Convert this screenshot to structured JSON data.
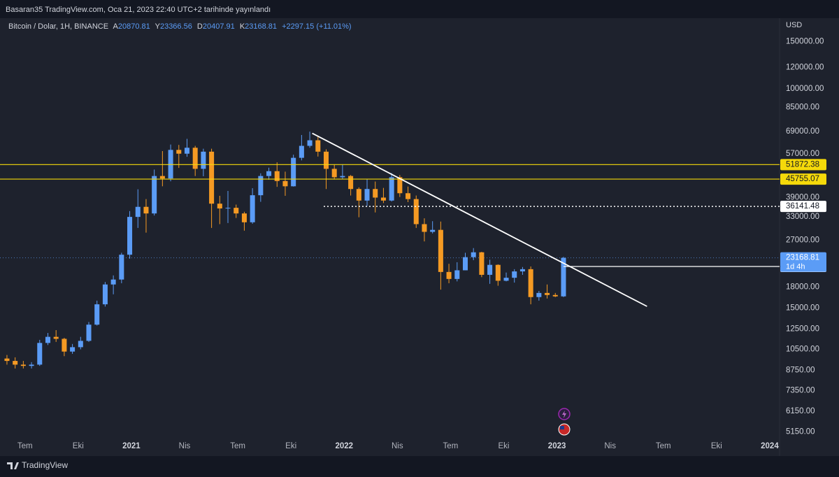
{
  "header": {
    "publisher": "Basaran35 TradingView.com, Oca 21, 2023 22:40 UTC+2 tarihinde yayınlandı",
    "brand": "TradingView"
  },
  "chart_data": {
    "type": "candlestick",
    "legend": {
      "symbol": "Bitcoin / Dolar, 1H, BINANCE",
      "open_key": "A",
      "open": "20870.81",
      "high_key": "Y",
      "high": "23366.56",
      "low_key": "D",
      "low": "20407.91",
      "close_key": "K",
      "close": "23168.81",
      "change": "+2297.15 (+11.01%)"
    },
    "currency": "USD",
    "up_color": "#5b9cf6",
    "down_color": "#f59a23",
    "log_scale": true,
    "grid": false,
    "open": [
      9700,
      9500,
      9200,
      9100,
      9200,
      11100,
      11700,
      11500,
      10300,
      10700,
      11300,
      13000,
      15500,
      18400,
      19200,
      23800,
      33000,
      36000,
      34000,
      47000,
      46000,
      58900,
      57000,
      60000,
      50000,
      58000,
      37000,
      35500,
      35700,
      34000,
      31500,
      39800,
      47000,
      49000,
      45000,
      43000,
      55000,
      61000,
      64000,
      58000,
      50000,
      46500,
      47000,
      42000,
      38000,
      42000,
      39000,
      38000,
      46500,
      40500,
      38500,
      31000,
      29000,
      29500,
      20500,
      19300,
      20800,
      23300,
      24300,
      20000,
      21800,
      19000,
      19500,
      20600,
      21000,
      16500,
      17100,
      16800,
      16600
    ],
    "high": [
      10000,
      9800,
      9500,
      9400,
      11400,
      12100,
      12400,
      11600,
      11000,
      11700,
      13300,
      16000,
      18800,
      19900,
      24200,
      34700,
      41900,
      38500,
      49700,
      58300,
      61700,
      61500,
      64800,
      61000,
      59500,
      59500,
      39600,
      41300,
      36700,
      34500,
      42300,
      48100,
      50500,
      52900,
      48800,
      56500,
      67000,
      69000,
      66300,
      59200,
      51900,
      52000,
      47400,
      42600,
      45800,
      44800,
      42400,
      48200,
      47400,
      42900,
      39700,
      32600,
      31800,
      31700,
      22000,
      22300,
      24200,
      25200,
      24400,
      22800,
      21900,
      20400,
      21000,
      21400,
      21500,
      17400,
      18400,
      17100,
      23366
    ],
    "low": [
      9200,
      8900,
      8900,
      8900,
      9100,
      10900,
      11200,
      9900,
      10100,
      10500,
      11200,
      12900,
      15200,
      16900,
      18600,
      23000,
      30000,
      28800,
      33400,
      43000,
      44900,
      50400,
      55500,
      47000,
      46900,
      30000,
      31000,
      31300,
      32700,
      29300,
      31100,
      37600,
      45500,
      42800,
      39600,
      42900,
      53800,
      60000,
      55600,
      42000,
      45600,
      45700,
      39700,
      32900,
      36300,
      34300,
      37200,
      37700,
      39200,
      37500,
      30000,
      26700,
      28600,
      17600,
      18600,
      18900,
      20800,
      22700,
      19600,
      18500,
      18200,
      18900,
      18700,
      20000,
      15500,
      16000,
      16300,
      16500,
      16500
    ],
    "close": [
      9500,
      9200,
      9100,
      9200,
      11100,
      11700,
      11500,
      10300,
      10700,
      11300,
      13000,
      15500,
      18400,
      19200,
      23800,
      33000,
      36000,
      34000,
      47000,
      46000,
      58900,
      57000,
      60000,
      50000,
      58000,
      37000,
      35500,
      35700,
      34000,
      31500,
      39800,
      47000,
      49000,
      45000,
      43000,
      55000,
      61000,
      64000,
      58000,
      50000,
      46500,
      47000,
      42000,
      38000,
      42000,
      39000,
      38000,
      46500,
      40500,
      38500,
      31000,
      29000,
      29500,
      20500,
      19300,
      20800,
      23300,
      24300,
      20000,
      21800,
      19000,
      19500,
      20600,
      21000,
      16500,
      17100,
      16800,
      16600,
      23169
    ],
    "xlim": [
      -0.85,
      94.4
    ],
    "xticks": [
      {
        "value": 2.2,
        "label": "Tem"
      },
      {
        "value": 8.7,
        "label": "Eki"
      },
      {
        "value": 15.2,
        "label": "2021"
      },
      {
        "value": 21.7,
        "label": "Nis"
      },
      {
        "value": 28.2,
        "label": "Tem"
      },
      {
        "value": 34.7,
        "label": "Eki"
      },
      {
        "value": 41.2,
        "label": "2022"
      },
      {
        "value": 47.7,
        "label": "Nis"
      },
      {
        "value": 54.2,
        "label": "Tem"
      },
      {
        "value": 60.7,
        "label": "Eki"
      },
      {
        "value": 67.2,
        "label": "2023"
      },
      {
        "value": 73.7,
        "label": "Nis"
      },
      {
        "value": 80.2,
        "label": "Tem"
      },
      {
        "value": 86.7,
        "label": "Eki"
      },
      {
        "value": 93.2,
        "label": "2024"
      }
    ],
    "ylim": [
      4770,
      181700
    ],
    "yticks": [
      {
        "value": 150000,
        "label": "150000.00"
      },
      {
        "value": 120000,
        "label": "120000.00"
      },
      {
        "value": 100000,
        "label": "100000.00"
      },
      {
        "value": 85000,
        "label": "85000.00"
      },
      {
        "value": 69000,
        "label": "69000.00"
      },
      {
        "value": 57000,
        "label": "57000.00"
      },
      {
        "value": 39000,
        "label": "39000.00"
      },
      {
        "value": 33000,
        "label": "33000.00"
      },
      {
        "value": 27000,
        "label": "27000.00"
      },
      {
        "value": 18000,
        "label": "18000.00"
      },
      {
        "value": 15000,
        "label": "15000.00"
      },
      {
        "value": 12500,
        "label": "12500.00"
      },
      {
        "value": 10500,
        "label": "10500.00"
      },
      {
        "value": 8750,
        "label": "8750.00"
      },
      {
        "value": 7350,
        "label": "7350.00"
      },
      {
        "value": 6150,
        "label": "6150.00"
      },
      {
        "value": 5150,
        "label": "5150.00"
      }
    ],
    "price_lines": [
      {
        "value": 51872.38,
        "color": "#f5d90a",
        "style": "solid",
        "from": -0.85
      },
      {
        "value": 45755.07,
        "color": "#f5d90a",
        "style": "solid",
        "from": -0.85
      },
      {
        "value": 36141.48,
        "color": "#ffffff",
        "style": "dotted",
        "from": 38.7
      },
      {
        "value": 21500.16,
        "color": "#ffffff",
        "style": "solid",
        "from": 68
      }
    ],
    "last_price": {
      "value": 23168.81,
      "countdown": "1d 4h",
      "color": "#5b9cf6"
    },
    "trendline": {
      "x": [
        37.3,
        78.2
      ],
      "y": [
        68000,
        15230
      ],
      "color": "#ffffff"
    }
  }
}
